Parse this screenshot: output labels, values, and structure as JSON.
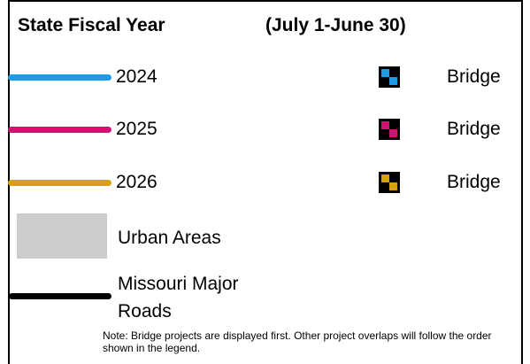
{
  "legend": {
    "title": "State Fiscal Year",
    "date_range": "(July 1-June 30)",
    "years": [
      {
        "label": "2024",
        "color": "#1f9ae6",
        "bridge_label": "Bridge",
        "bridge_icon": "bridge-icon"
      },
      {
        "label": "2025",
        "color": "#d01372",
        "bridge_label": "Bridge",
        "bridge_icon": "bridge-icon"
      },
      {
        "label": "2026",
        "color": "#d89f12",
        "bridge_label": "Bridge",
        "bridge_icon": "bridge-icon"
      }
    ],
    "urban": {
      "label": "Urban Areas",
      "color": "#cccccc"
    },
    "roads": {
      "label": "Missouri Major Roads",
      "color": "#000000"
    },
    "note": "Note: Bridge projects are displayed first. Other project overlaps will follow the order shown in the legend."
  }
}
